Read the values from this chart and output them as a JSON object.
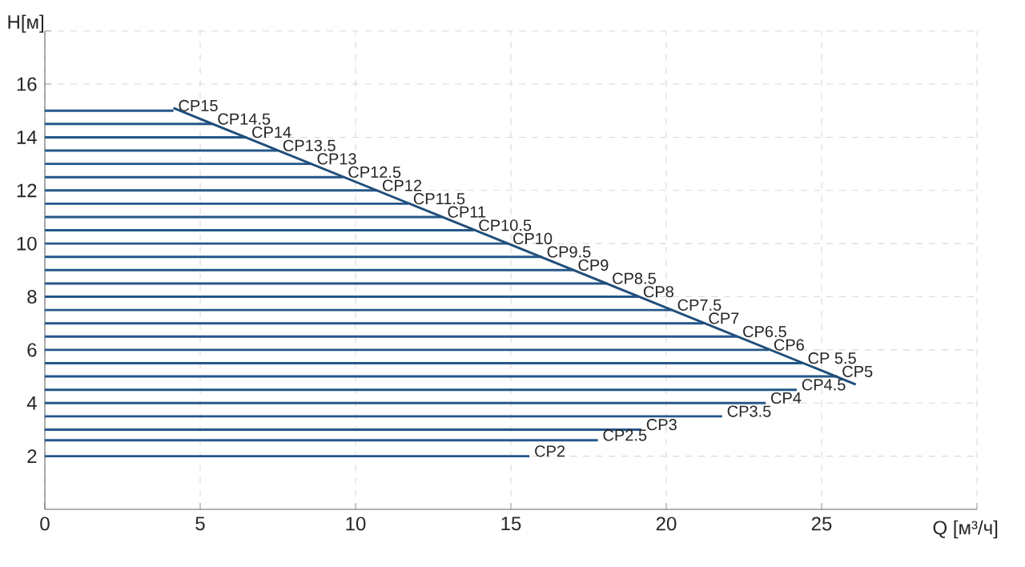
{
  "chart_data": {
    "type": "line",
    "xlabel": "Q [м³/ч]",
    "ylabel": "H[м]",
    "xlim": [
      0,
      30
    ],
    "ylim": [
      0,
      18
    ],
    "xticks": [
      0,
      5,
      10,
      15,
      20,
      25,
      {
        "value": 30,
        "label": null
      }
    ],
    "yticks": [
      2,
      4,
      6,
      8,
      10,
      12,
      14,
      16,
      {
        "value": 18,
        "label": null
      }
    ],
    "grid": true,
    "marker": "none",
    "line_style": "solid",
    "series": [
      {
        "name": "CP15",
        "color": "#24578a",
        "x": [
          0,
          4.14
        ],
        "values": [
          15,
          15
        ]
      },
      {
        "name": "CP14.5",
        "color": "#24578a",
        "x": [
          0,
          5.4
        ],
        "values": [
          14.5,
          14.5
        ]
      },
      {
        "name": "CP14",
        "color": "#24578a",
        "x": [
          0,
          6.5
        ],
        "values": [
          14,
          14
        ]
      },
      {
        "name": "CP13.5",
        "color": "#24578a",
        "x": [
          0,
          7.5
        ],
        "values": [
          13.5,
          13.5
        ]
      },
      {
        "name": "CP13",
        "color": "#24578a",
        "x": [
          0,
          8.6
        ],
        "values": [
          13,
          13
        ]
      },
      {
        "name": "CP12.5",
        "color": "#24578a",
        "x": [
          0,
          9.6
        ],
        "values": [
          12.5,
          12.5
        ]
      },
      {
        "name": "CP12",
        "color": "#24578a",
        "x": [
          0,
          10.7
        ],
        "values": [
          12,
          12
        ]
      },
      {
        "name": "CP11.5",
        "color": "#24578a",
        "x": [
          0,
          11.7
        ],
        "values": [
          11.5,
          11.5
        ]
      },
      {
        "name": "CP11",
        "color": "#24578a",
        "x": [
          0,
          12.8
        ],
        "values": [
          11,
          11
        ]
      },
      {
        "name": "CP10.5",
        "color": "#24578a",
        "x": [
          0,
          13.8
        ],
        "values": [
          10.5,
          10.5
        ]
      },
      {
        "name": "CP10",
        "color": "#24578a",
        "x": [
          0,
          14.9
        ],
        "values": [
          10,
          10
        ]
      },
      {
        "name": "CP9.5",
        "color": "#24578a",
        "x": [
          0,
          16
        ],
        "values": [
          9.5,
          9.5
        ]
      },
      {
        "name": "CP9",
        "color": "#24578a",
        "x": [
          0,
          17
        ],
        "values": [
          9,
          9
        ]
      },
      {
        "name": "CP8.5",
        "color": "#24578a",
        "x": [
          0,
          18.1
        ],
        "values": [
          8.5,
          8.5
        ]
      },
      {
        "name": "CP8",
        "color": "#24578a",
        "x": [
          0,
          19.1
        ],
        "values": [
          8,
          8
        ]
      },
      {
        "name": "CP7.5",
        "color": "#24578a",
        "x": [
          0,
          20.2
        ],
        "values": [
          7.5,
          7.5
        ]
      },
      {
        "name": "CP7",
        "color": "#24578a",
        "x": [
          0,
          21.2
        ],
        "values": [
          7,
          7
        ]
      },
      {
        "name": "CP6.5",
        "color": "#24578a",
        "x": [
          0,
          22.3
        ],
        "values": [
          6.5,
          6.5
        ]
      },
      {
        "name": "CP6",
        "color": "#24578a",
        "x": [
          0,
          23.3
        ],
        "values": [
          6,
          6
        ]
      },
      {
        "name": "CP 5.5",
        "color": "#24578a",
        "x": [
          0,
          24.4
        ],
        "values": [
          5.5,
          5.5
        ]
      },
      {
        "name": "CP5",
        "color": "#24578a",
        "x": [
          0,
          25.5
        ],
        "values": [
          5,
          5
        ]
      },
      {
        "name": "CP4.5",
        "color": "#24578a",
        "x": [
          0,
          24.2
        ],
        "values": [
          4.5,
          4.5
        ]
      },
      {
        "name": "CP4",
        "color": "#24578a",
        "x": [
          0,
          23.2
        ],
        "values": [
          4,
          4
        ]
      },
      {
        "name": "CP3.5",
        "color": "#24578a",
        "x": [
          0,
          21.8
        ],
        "values": [
          3.5,
          3.5
        ]
      },
      {
        "name": "CP3",
        "color": "#24578a",
        "x": [
          0,
          19.2
        ],
        "values": [
          3,
          3
        ]
      },
      {
        "name": "CP2.5",
        "color": "#24578a",
        "x": [
          0,
          17.8
        ],
        "values": [
          2.6,
          2.6
        ]
      },
      {
        "name": "CP2",
        "color": "#24578a",
        "x": [
          0,
          15.6
        ],
        "values": [
          2,
          2
        ]
      },
      {
        "color": "#1f4e79",
        "x": [
          4.14,
          26.1
        ],
        "values": [
          15.1,
          4.7
        ]
      }
    ]
  }
}
